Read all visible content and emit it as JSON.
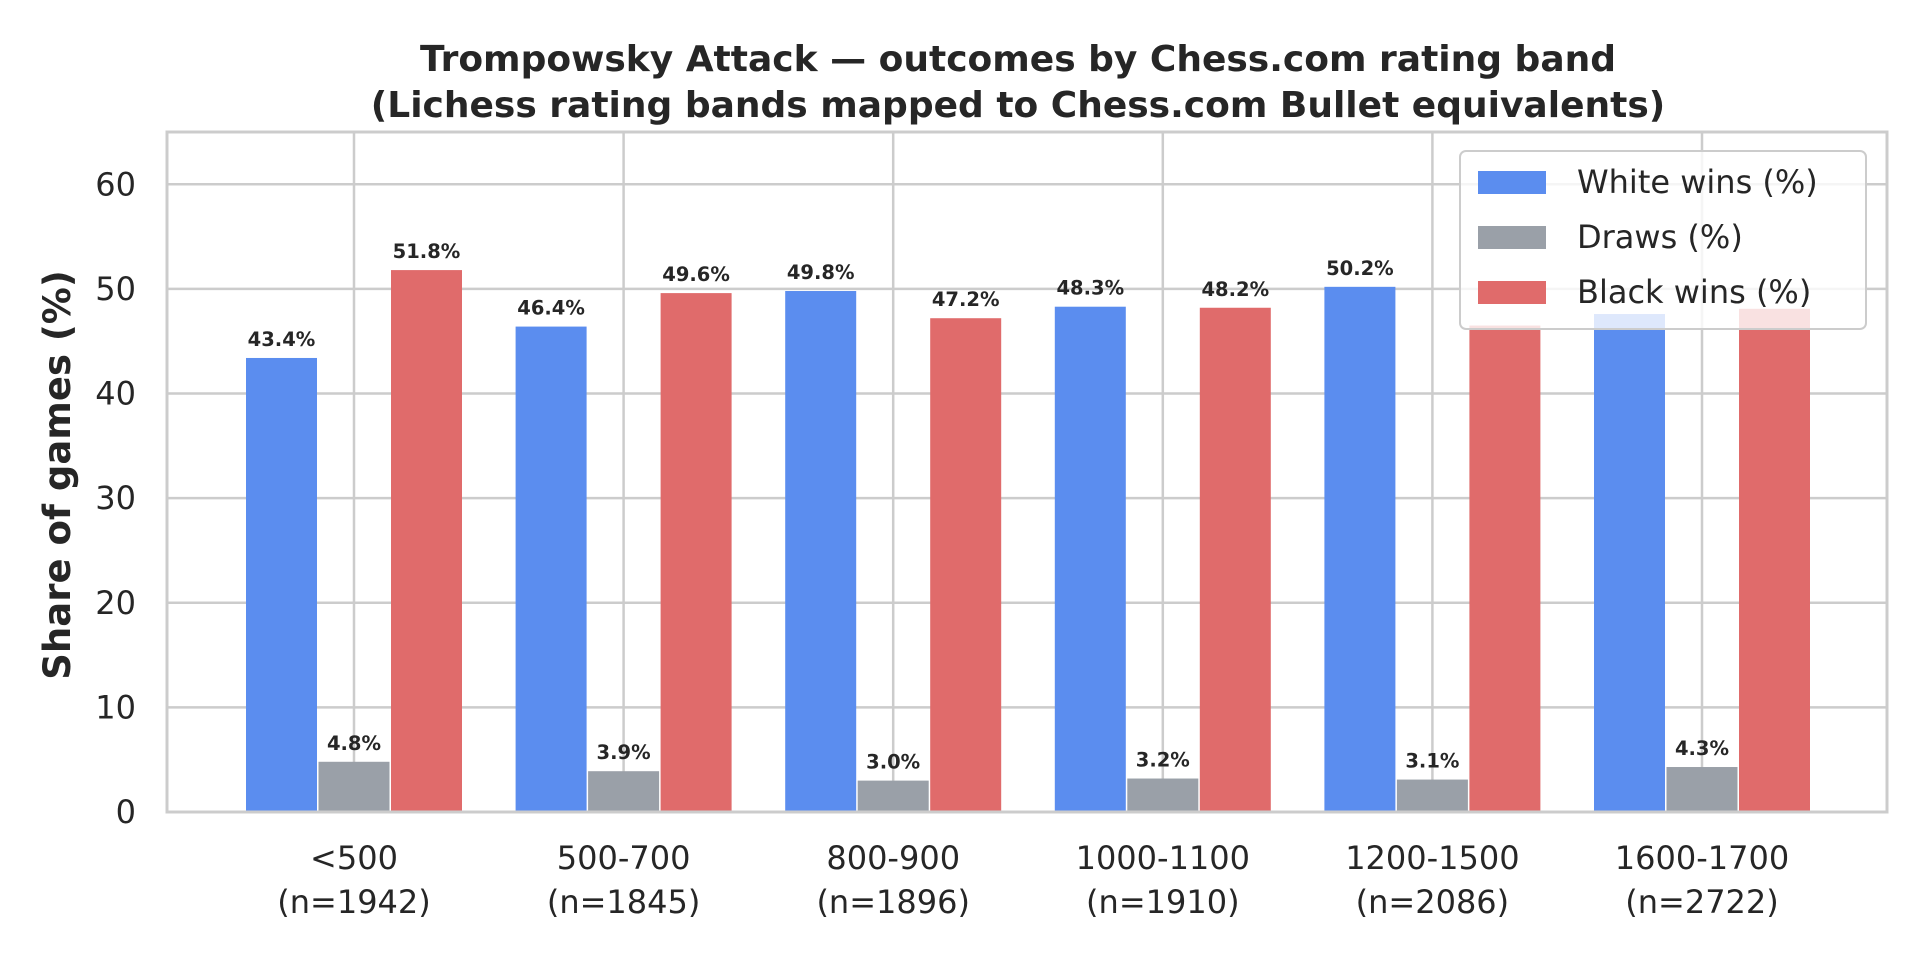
{
  "chart_data": {
    "type": "bar",
    "title": "Trompowsky Attack — outcomes by Chess.com rating band",
    "subtitle": "(Lichess rating bands mapped to Chess.com Bullet equivalents)",
    "xlabel": "",
    "ylabel": "Share of games (%)",
    "ylim": [
      0,
      65
    ],
    "yticks": [
      0,
      10,
      20,
      30,
      40,
      50,
      60
    ],
    "grid": true,
    "legend_position": "top-right",
    "categories": [
      "<500\n(n=1942)",
      "500-700\n(n=1845)",
      "800-900\n(n=1896)",
      "1000-1100\n(n=1910)",
      "1200-1500\n(n=2086)",
      "1600-1700\n(n=2722)"
    ],
    "series": [
      {
        "name": "White wins (%)",
        "color": "#5b8def",
        "values": [
          43.4,
          46.4,
          49.8,
          48.3,
          50.2,
          47.6
        ],
        "labels": [
          "43.4%",
          "46.4%",
          "49.8%",
          "48.3%",
          "50.2%",
          ""
        ]
      },
      {
        "name": "Draws (%)",
        "color": "#9aa0a8",
        "values": [
          4.8,
          3.9,
          3.0,
          3.2,
          3.1,
          4.3
        ],
        "labels": [
          "4.8%",
          "3.9%",
          "3.0%",
          "3.2%",
          "3.1%",
          "4.3%"
        ]
      },
      {
        "name": "Black wins (%)",
        "color": "#e06b6b",
        "values": [
          51.8,
          49.6,
          47.2,
          48.2,
          46.5,
          48.1
        ],
        "labels": [
          "51.8%",
          "49.6%",
          "47.2%",
          "48.2%",
          "",
          ""
        ]
      }
    ]
  }
}
